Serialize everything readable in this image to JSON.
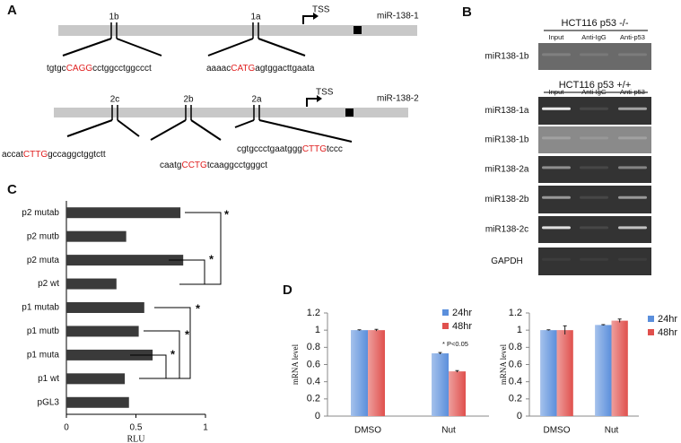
{
  "panel_a": {
    "label": "A",
    "genes": [
      {
        "marks": [
          {
            "label": "1b",
            "sequence": [
              "tgtgc",
              "CAGG",
              "cctggcctggccct"
            ]
          },
          {
            "label": "1a",
            "sequence": [
              "aaaac",
              "CATG",
              "agtggacttgaata"
            ]
          }
        ],
        "tss": "TSS",
        "mirna": "miR-138-1"
      },
      {
        "marks": [
          {
            "label": "2c",
            "sequence": [
              "accat",
              "CTTG",
              "gccaggctggtctt"
            ]
          },
          {
            "label": "2b",
            "sequence": [
              "caatg",
              "CCTG",
              "tcaaggcctgggct"
            ]
          },
          {
            "label": "2a",
            "sequence": [
              "cgtgccctgaatggg",
              "CTTG",
              "tccc"
            ]
          }
        ],
        "tss": "TSS",
        "mirna": "miR-138-2"
      }
    ]
  },
  "panel_b": {
    "label": "B",
    "groups": [
      {
        "title": "HCT116 p53 -/-",
        "lanes": [
          "Input",
          "Anti-IgG",
          "Anti-p53"
        ],
        "rows": [
          "miR138-1b"
        ]
      },
      {
        "title": "HCT116 p53 +/+",
        "lanes": [
          "Input",
          "Anti-IgG",
          "Anti-p53"
        ],
        "rows": [
          "miR138-1a",
          "miR138-1b",
          "miR138-2a",
          "miR138-2b",
          "miR138-2c",
          "GAPDH"
        ]
      }
    ]
  },
  "chart_data": [
    {
      "type": "bar",
      "orientation": "horizontal",
      "panel_label": "C",
      "categories": [
        "p2 mutab",
        "p2 mutb",
        "p2 muta",
        "p2 wt",
        "p1 mutab",
        "p1 mutb",
        "p1 muta",
        "p1 wt",
        "pGL3"
      ],
      "values": [
        0.82,
        0.43,
        0.84,
        0.36,
        0.56,
        0.52,
        0.62,
        0.42,
        0.45
      ],
      "color": "#3a3a3a",
      "xlim": [
        0,
        1
      ],
      "xticks": [
        0,
        0.5,
        1
      ],
      "x_label": "RLU",
      "annotations": [
        "*",
        "*",
        "*",
        "*",
        "*"
      ]
    },
    {
      "type": "bar",
      "panel_label": "D",
      "categories": [
        "DMSO",
        "Nut"
      ],
      "series": [
        {
          "name": "24hr",
          "color": "#5b8fdc",
          "values": [
            1,
            0.73
          ],
          "errors": [
            0.005,
            0.01
          ]
        },
        {
          "name": "48hr",
          "color": "#e0504d",
          "values": [
            1,
            0.52
          ],
          "errors": [
            0.01,
            0.01
          ]
        }
      ],
      "ylim": [
        0,
        1.2
      ],
      "yticks": [
        0,
        0.2,
        0.4,
        0.6,
        0.8,
        1,
        1.2
      ],
      "y_label": "mRNA level",
      "legend": "upper right",
      "annotation": "* P<0.05"
    },
    {
      "type": "bar",
      "categories": [
        "DMSO",
        "Nut"
      ],
      "series": [
        {
          "name": "24hr",
          "color": "#5b8fdc",
          "values": [
            1,
            1.06
          ],
          "errors": [
            0.005,
            0.005
          ]
        },
        {
          "name": "48hr",
          "color": "#e0504d",
          "values": [
            1,
            1.11
          ],
          "errors": [
            0.05,
            0.02
          ]
        }
      ],
      "ylim": [
        0,
        1.2
      ],
      "yticks": [
        0,
        0.2,
        0.4,
        0.6,
        0.8,
        1,
        1.2
      ],
      "y_label": "mRNA level",
      "legend": "right"
    }
  ]
}
